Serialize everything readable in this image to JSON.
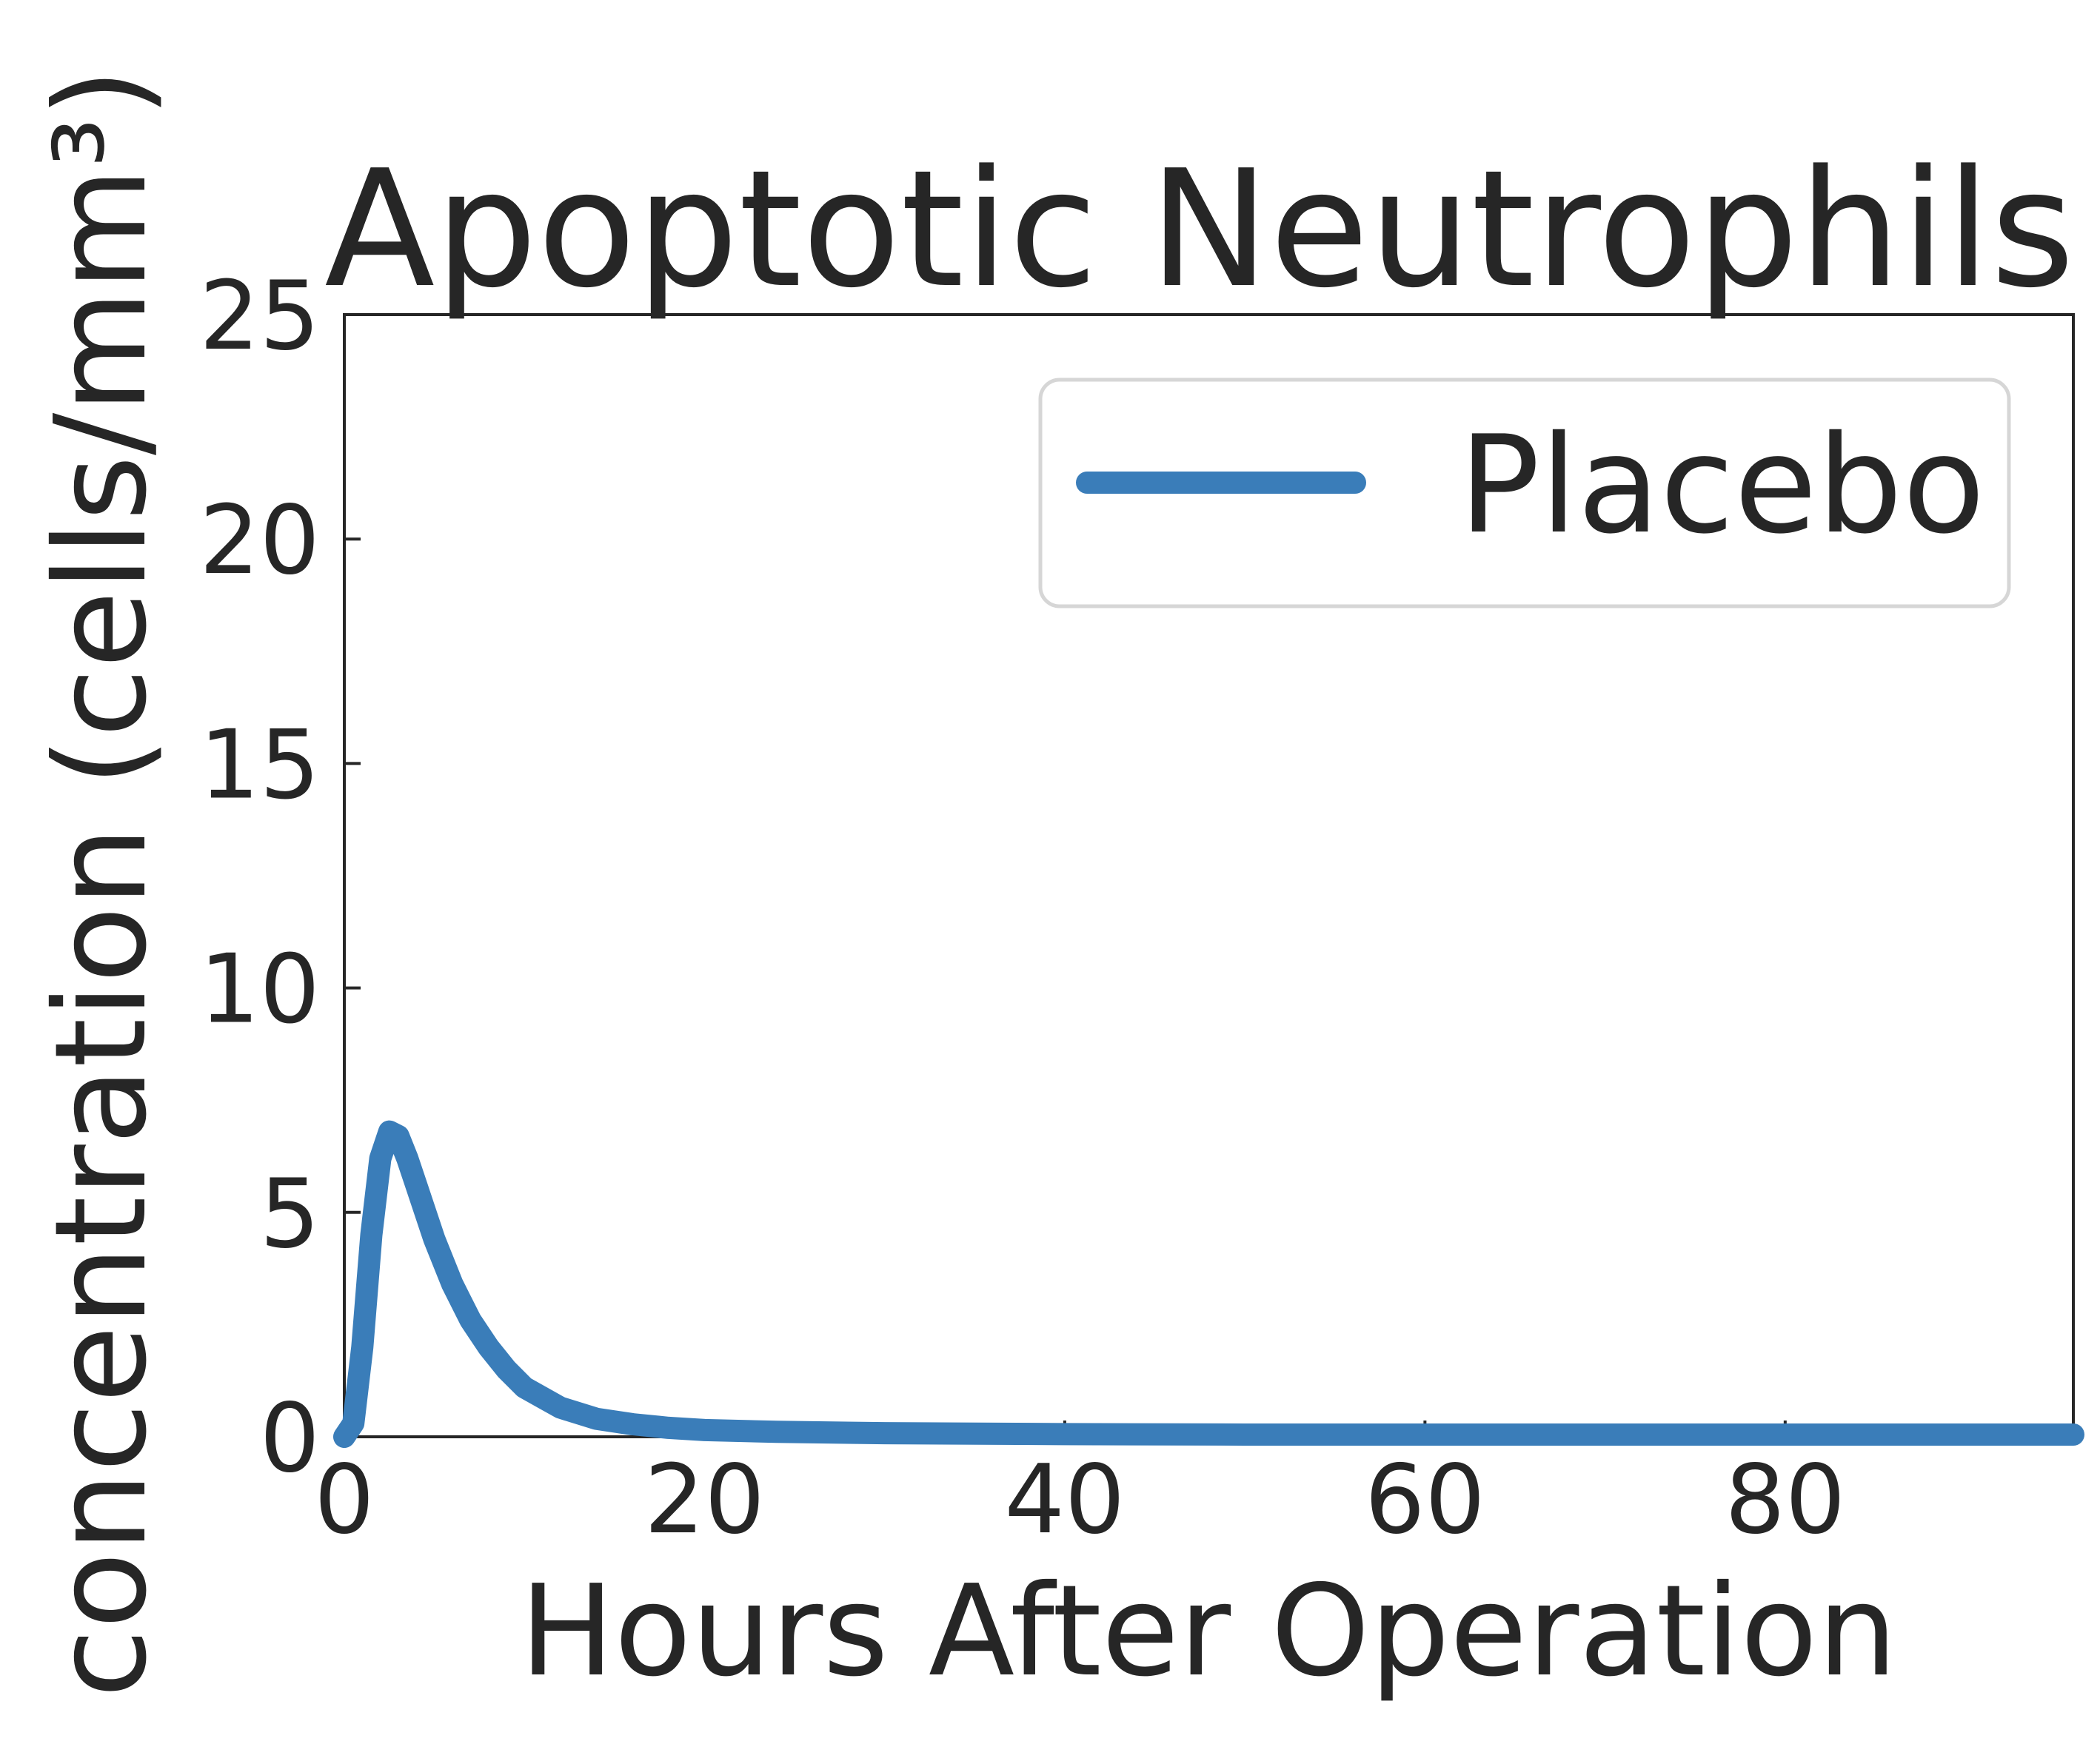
{
  "chart_data": {
    "type": "line",
    "title": "Apoptotic Neutrophils",
    "xlabel": "Hours After Operation",
    "ylabel": "concentration (cells/mm³)",
    "xlim": [
      0,
      96
    ],
    "ylim": [
      0,
      25
    ],
    "xticks": [
      0,
      20,
      40,
      60,
      80
    ],
    "yticks": [
      0,
      5,
      10,
      15,
      20,
      25
    ],
    "grid": false,
    "legend_position": "top-right",
    "series": [
      {
        "name": "Placebo",
        "color": "#3a7db9",
        "x": [
          0,
          0.5,
          1,
          1.5,
          2,
          2.5,
          3,
          3.5,
          4,
          5,
          6,
          7,
          8,
          9,
          10,
          12,
          14,
          16,
          18,
          20,
          24,
          30,
          40,
          50,
          60,
          70,
          80,
          90,
          96
        ],
        "y": [
          0,
          0.3,
          2.0,
          4.5,
          6.2,
          6.8,
          6.7,
          6.2,
          5.6,
          4.4,
          3.4,
          2.6,
          2.0,
          1.5,
          1.1,
          0.65,
          0.4,
          0.28,
          0.2,
          0.15,
          0.11,
          0.08,
          0.06,
          0.05,
          0.05,
          0.05,
          0.05,
          0.05,
          0.05
        ]
      }
    ]
  }
}
